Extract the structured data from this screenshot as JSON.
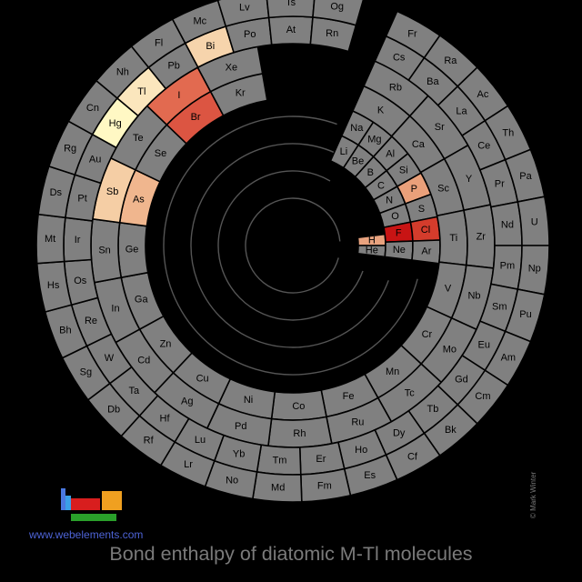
{
  "title": "Bond enthalpy of diatomic M-Tl molecules",
  "website": "www.webelements.com",
  "credit": "© Mark Winter",
  "colors": {
    "background": "#000000",
    "cell_default": "#808080",
    "spiral": "#555555",
    "title": "#7a7a7a",
    "link": "#4d63d6"
  },
  "chart_data": {
    "type": "heatmap",
    "layout": "spiral periodic table",
    "highlighted": [
      {
        "symbol": "F",
        "color": "#c81414"
      },
      {
        "symbol": "Cl",
        "color": "#d43c2c"
      },
      {
        "symbol": "Br",
        "color": "#dc5542"
      },
      {
        "symbol": "I",
        "color": "#e26a50"
      },
      {
        "symbol": "H",
        "color": "#e9a37f"
      },
      {
        "symbol": "P",
        "color": "#eaa07a"
      },
      {
        "symbol": "As",
        "color": "#f0b68e"
      },
      {
        "symbol": "Sb",
        "color": "#f5cea5"
      },
      {
        "symbol": "Bi",
        "color": "#f6d4ac"
      },
      {
        "symbol": "Tl",
        "color": "#fbe6bd"
      },
      {
        "symbol": "Hg",
        "color": "#fff8c4"
      }
    ],
    "rings": [
      [
        "H",
        "He"
      ],
      [
        "Li",
        "Be",
        "B",
        "C",
        "N",
        "O",
        "F",
        "Ne"
      ],
      [
        "Na",
        "Mg",
        "Al",
        "Si",
        "P",
        "S",
        "Cl",
        "Ar"
      ],
      [
        "K",
        "Ca",
        "Sc",
        "Ti",
        "V",
        "Cr",
        "Mn",
        "Fe",
        "Co",
        "Ni",
        "Cu",
        "Zn",
        "Ga",
        "Ge",
        "As",
        "Se",
        "Br",
        "Kr"
      ],
      [
        "Rb",
        "Sr",
        "Y",
        "Zr",
        "Nb",
        "Mo",
        "Tc",
        "Ru",
        "Rh",
        "Pd",
        "Ag",
        "Cd",
        "In",
        "Sn",
        "Sb",
        "Te",
        "I",
        "Xe"
      ],
      [
        "Cs",
        "Ba",
        "La",
        "Ce",
        "Pr",
        "Nd",
        "Pm",
        "Sm",
        "Eu",
        "Gd",
        "Tb",
        "Dy",
        "Ho",
        "Er",
        "Tm",
        "Yb",
        "Lu",
        "Hf",
        "Ta",
        "W",
        "Re",
        "Os",
        "Ir",
        "Pt",
        "Au",
        "Hg",
        "Tl",
        "Pb",
        "Bi",
        "Po",
        "At",
        "Rn"
      ],
      [
        "Fr",
        "Ra",
        "Ac",
        "Th",
        "Pa",
        "U",
        "Np",
        "Pu",
        "Am",
        "Cm",
        "Bk",
        "Cf",
        "Es",
        "Fm",
        "Md",
        "No",
        "Lr",
        "Rf",
        "Db",
        "Sg",
        "Bh",
        "Hs",
        "Mt",
        "Ds",
        "Rg",
        "Cn",
        "Nh",
        "Fl",
        "Mc",
        "Lv",
        "Ts",
        "Og"
      ]
    ]
  }
}
